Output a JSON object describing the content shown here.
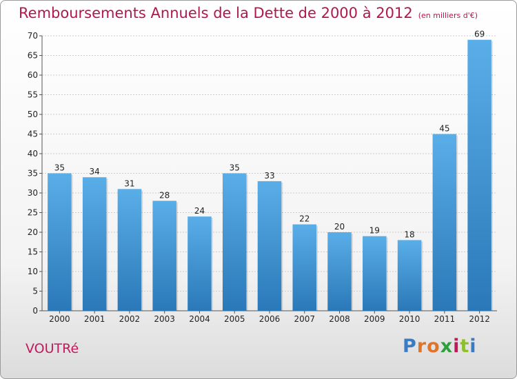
{
  "title": "Remboursements Annuels de la Dette de 2000 à 2012",
  "subtitle": "(en milliers d'€)",
  "commune": "VOUTRé",
  "logo": {
    "text": "Proxiti",
    "letter_colors": [
      "#3a7cc4",
      "#e0742b",
      "#e0742b",
      "#2e9e3e",
      "#c2185b",
      "#8fbf2f",
      "#3a7cc4"
    ]
  },
  "chart_data": {
    "type": "bar",
    "title": "Remboursements Annuels de la Dette de 2000 à 2012",
    "subtitle": "(en milliers d'€)",
    "categories": [
      "2000",
      "2001",
      "2002",
      "2003",
      "2004",
      "2005",
      "2006",
      "2007",
      "2008",
      "2009",
      "2010",
      "2011",
      "2012"
    ],
    "values": [
      35,
      34,
      31,
      28,
      24,
      35,
      33,
      22,
      20,
      19,
      18,
      45,
      69
    ],
    "xlabel": "",
    "ylabel": "",
    "ylim": [
      0,
      70
    ],
    "yticks": [
      0,
      5,
      10,
      15,
      20,
      25,
      30,
      35,
      40,
      45,
      50,
      55,
      60,
      65,
      70
    ],
    "grid": true,
    "bar_color_top": "#5aaee8",
    "bar_color_bottom": "#2a78b8"
  }
}
